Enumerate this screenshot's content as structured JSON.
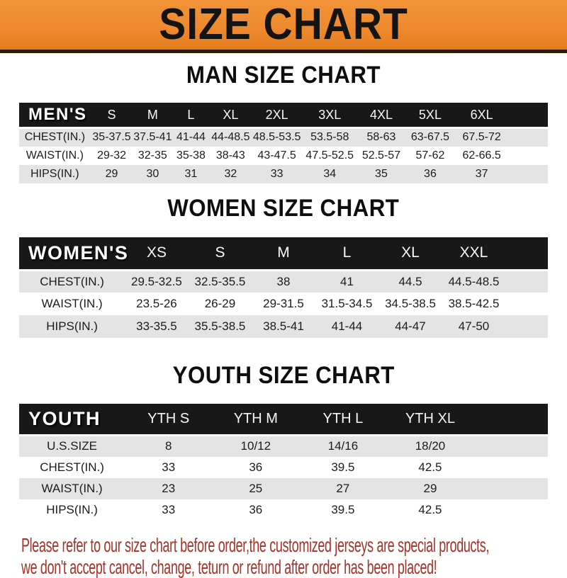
{
  "banner": {
    "title": "SIZE CHART"
  },
  "headings": {
    "men": "MAN SIZE CHART",
    "women": "WOMEN SIZE CHART",
    "youth": "YOUTH SIZE CHART"
  },
  "tables": {
    "men": {
      "label": "MEN'S",
      "columns": [
        "S",
        "M",
        "L",
        "XL",
        "2XL",
        "3XL",
        "4XL",
        "5XL",
        "6XL"
      ],
      "rows": [
        {
          "label": "CHEST(IN.)",
          "values": [
            "35-37.5",
            "37.5-41",
            "41-44",
            "44-48.5",
            "48.5-53.5",
            "53.5-58",
            "58-63",
            "63-67.5",
            "67.5-72"
          ]
        },
        {
          "label": "WAIST(IN.)",
          "values": [
            "29-32",
            "32-35",
            "35-38",
            "38-43",
            "43-47.5",
            "47.5-52.5",
            "52.5-57",
            "57-62",
            "62-66.5"
          ]
        },
        {
          "label": "HIPS(IN.)",
          "values": [
            "29",
            "30",
            "31",
            "32",
            "33",
            "34",
            "35",
            "36",
            "37"
          ]
        }
      ]
    },
    "women": {
      "label": "WOMEN'S",
      "columns": [
        "XS",
        "S",
        "M",
        "L",
        "XL",
        "XXL"
      ],
      "rows": [
        {
          "label": "CHEST(IN.)",
          "values": [
            "29.5-32.5",
            "32.5-35.5",
            "38",
            "41",
            "44.5",
            "44.5-48.5"
          ]
        },
        {
          "label": "WAIST(IN.)",
          "values": [
            "23.5-26",
            "26-29",
            "29-31.5",
            "31.5-34.5",
            "34.5-38.5",
            "38.5-42.5"
          ]
        },
        {
          "label": "HIPS(IN.)",
          "values": [
            "33-35.5",
            "35.5-38.5",
            "38.5-41",
            "41-44",
            "44-47",
            "47-50"
          ]
        }
      ]
    },
    "youth": {
      "label": "YOUTH",
      "columns": [
        "YTH S",
        "YTH M",
        "YTH L",
        "YTH XL"
      ],
      "rows": [
        {
          "label": "U.S.SIZE",
          "values": [
            "8",
            "10/12",
            "14/16",
            "18/20"
          ]
        },
        {
          "label": "CHEST(IN.)",
          "values": [
            "33",
            "36",
            "39.5",
            "42.5"
          ]
        },
        {
          "label": "WAIST(IN.)",
          "values": [
            "23",
            "25",
            "27",
            "29"
          ]
        },
        {
          "label": "HIPS(IN.)",
          "values": [
            "33",
            "36",
            "39.5",
            "42.5"
          ]
        }
      ]
    }
  },
  "notice": {
    "line1": "Please refer to our size chart before order,the customized jerseys are special products,",
    "line2": "we don't accept cancel, change, teturn or refund after order has been placed!"
  },
  "colors": {
    "banner_orange": "#ee8a2f",
    "header_black": "#181818",
    "row_gray": "#e4e4e4",
    "notice_red": "#a5322a"
  }
}
